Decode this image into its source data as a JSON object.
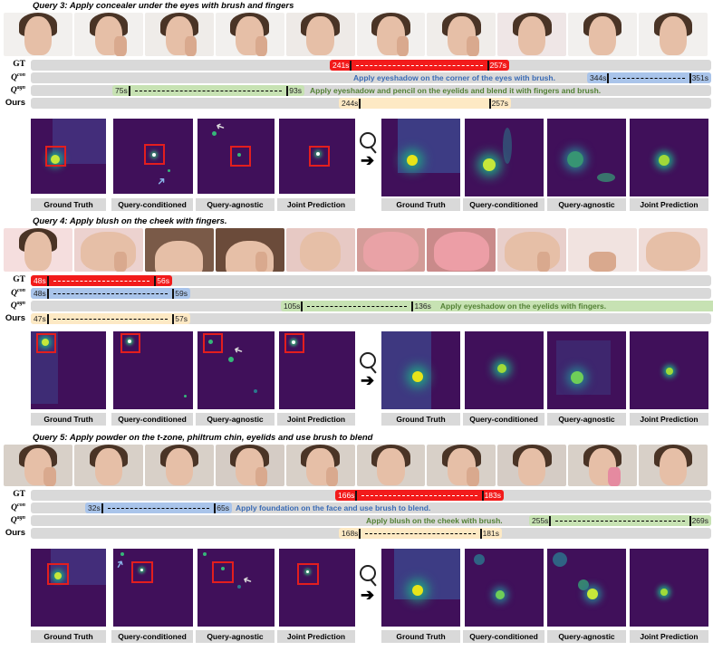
{
  "row_labels": {
    "gt": "GT",
    "q_con": "Q",
    "q_con_sup": "con",
    "q_agn": "Q",
    "q_agn_sup": "agn",
    "ours": "Ours"
  },
  "captions": [
    "Ground Truth",
    "Query-conditioned",
    "Query-agnostic",
    "Joint Prediction"
  ],
  "queries": [
    {
      "title": "Query 3: Apply concealer under the eyes with brush and fingers",
      "gt": {
        "start": "241s",
        "end": "257s"
      },
      "q_con": {
        "start": "344s",
        "end": "351s",
        "text": "Apply eyeshadow on the corner of the eyes with brush."
      },
      "q_agn": {
        "start": "75s",
        "end": "93s",
        "text": "Apply eyeshadow and pencil on the eyelids and blend it with fingers and brush."
      },
      "ours": {
        "start": "244s",
        "end": "257s"
      }
    },
    {
      "title": "Query 4: Apply blush on the cheek with fingers.",
      "gt": {
        "start": "48s",
        "end": "56s"
      },
      "q_con": {
        "start": "48s",
        "end": "59s",
        "text": ""
      },
      "q_agn": {
        "start": "105s",
        "end": "136s",
        "text": "Apply eyeshadow on the eyelids with fingers."
      },
      "ours": {
        "start": "47s",
        "end": "57s"
      }
    },
    {
      "title": "Query 5: Apply powder on the t-zone, philtrum chin, eyelids and use brush to blend",
      "gt": {
        "start": "166s",
        "end": "183s"
      },
      "q_con": {
        "start": "32s",
        "end": "65s",
        "text": "Apply foundation on the face and use brush to blend."
      },
      "q_agn": {
        "start": "255s",
        "end": "269s",
        "text": "Apply blush on the cheek with brush."
      },
      "ours": {
        "start": "168s",
        "end": "181s"
      }
    }
  ],
  "colors": {
    "gt": "#f21b1b",
    "q_con": "#a9c4ea",
    "q_agn": "#c7e2b3",
    "ours": "#fde9c4",
    "heatmap_bg": "#40105a",
    "box": "#e31e1e"
  }
}
